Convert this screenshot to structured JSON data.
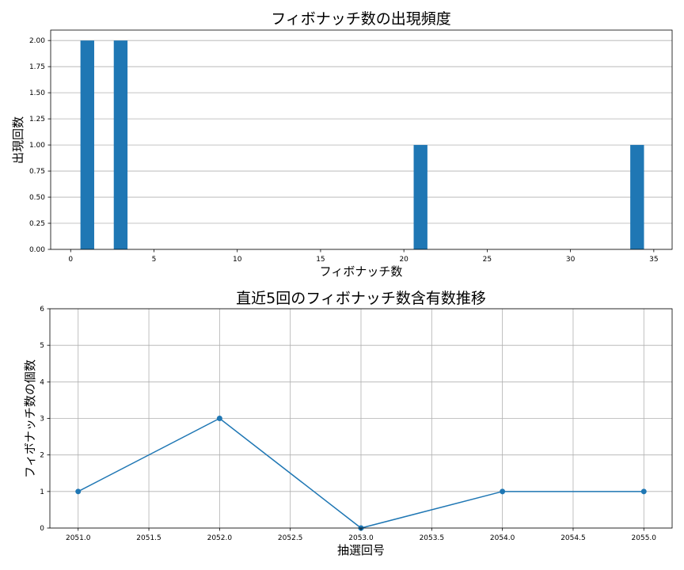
{
  "chart_data": [
    {
      "type": "bar",
      "title": "フィボナッチ数の出現頻度",
      "xlabel": "フィボナッチ数",
      "ylabel": "出現回数",
      "x": [
        1,
        3,
        21,
        34
      ],
      "values": [
        2,
        2,
        1,
        1
      ],
      "xlim": [
        -1.2,
        36.1
      ],
      "ylim": [
        0,
        2.1
      ],
      "xticks": [
        "0",
        "5",
        "10",
        "15",
        "20",
        "25",
        "30",
        "35"
      ],
      "yticks": [
        "0.00",
        "0.25",
        "0.50",
        "0.75",
        "1.00",
        "1.25",
        "1.50",
        "1.75",
        "2.00"
      ],
      "grid": "y",
      "bar_color": "#1f77b4"
    },
    {
      "type": "line",
      "title": "直近5回のフィボナッチ数含有数推移",
      "xlabel": "抽選回号",
      "ylabel": "フィボナッチ数の個数",
      "x": [
        2051,
        2052,
        2053,
        2054,
        2055
      ],
      "values": [
        1,
        3,
        0,
        1,
        1
      ],
      "xlim": [
        2050.8,
        2055.2
      ],
      "ylim": [
        0,
        6
      ],
      "xticks": [
        "2051.0",
        "2051.5",
        "2052.0",
        "2052.5",
        "2053.0",
        "2053.5",
        "2054.0",
        "2054.5",
        "2055.0"
      ],
      "yticks": [
        "0",
        "1",
        "2",
        "3",
        "4",
        "5",
        "6"
      ],
      "grid": "both",
      "line_color": "#1f77b4",
      "marker": "circle"
    }
  ]
}
